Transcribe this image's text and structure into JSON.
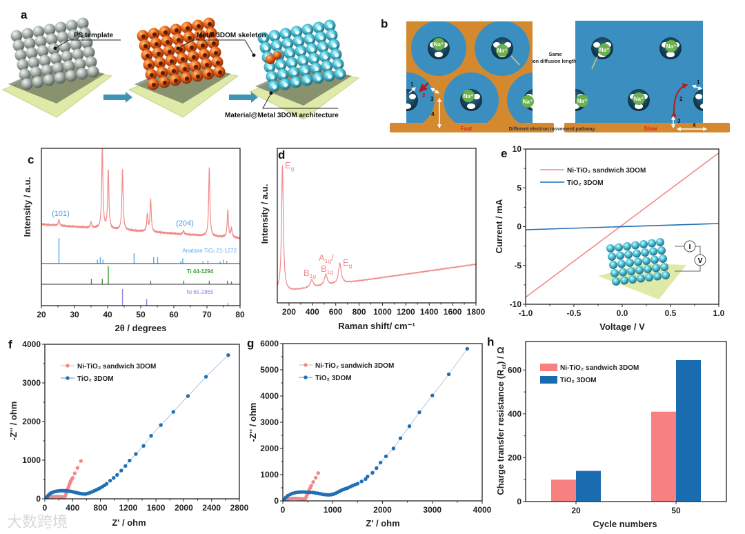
{
  "panel_labels": {
    "a": "a",
    "b": "b",
    "c": "c",
    "d": "d",
    "e": "e",
    "f": "f",
    "g": "g",
    "h": "h"
  },
  "panel_a": {
    "ps_template": "PS template",
    "metal_skeleton": "Metal 3DOM skeleton",
    "architecture": "Material@Metal 3DOM architecture"
  },
  "panel_b": {
    "ion_label": "Na⁺",
    "same_line1": "Same",
    "same_line2": "ion diffusion length",
    "pathway": "Different electron movement pathway",
    "fast": "Fast",
    "slow": "Slow",
    "steps": [
      "1",
      "2",
      "3",
      "4"
    ],
    "colors": {
      "metal": "#d4892f",
      "material": "#3b8fc0",
      "ion": "#6ab04c",
      "fast": "#d7261e"
    }
  },
  "panel_e_inset": {
    "current": "I",
    "voltage": "V"
  },
  "watermark": "大数跨境",
  "chart_data": [
    {
      "panel": "c",
      "type": "line",
      "xlabel": "2θ / degrees",
      "ylabel": "Intensity / a.u.",
      "xlim": [
        20,
        80
      ],
      "ylim": [
        0,
        100
      ],
      "xticks": [
        "20",
        "30",
        "40",
        "50",
        "60",
        "70",
        "80"
      ],
      "series": [
        {
          "name": "XRD pattern",
          "color": "#f08a8a",
          "baseline": [
            [
              20,
              34
            ],
            [
              80,
              22
            ]
          ],
          "peaks": [
            [
              25.3,
              5
            ],
            [
              35,
              5
            ],
            [
              38.4,
              72
            ],
            [
              40.2,
              51
            ],
            [
              44.5,
              52
            ],
            [
              52,
              15
            ],
            [
              53,
              28
            ],
            [
              62.9,
              3
            ],
            [
              70.7,
              59
            ],
            [
              76.3,
              24
            ],
            [
              77.4,
              8
            ]
          ]
        }
      ],
      "annotations": [
        {
          "text": "(101)",
          "x": 25.3
        },
        {
          "text": "(204)",
          "x": 62.9
        }
      ],
      "references": [
        {
          "name": "Anatase TiO₂ 21-1272",
          "color": "#5aa9e6",
          "sticks": [
            [
              25.3,
              100
            ],
            [
              36.9,
              15
            ],
            [
              37.8,
              25
            ],
            [
              38.6,
              15
            ],
            [
              48.0,
              40
            ],
            [
              53.9,
              25
            ],
            [
              55.1,
              25
            ],
            [
              62.1,
              10
            ],
            [
              62.7,
              20
            ],
            [
              68.8,
              10
            ],
            [
              70.3,
              12
            ],
            [
              74.0,
              8
            ],
            [
              75.0,
              15
            ],
            [
              76.0,
              10
            ]
          ]
        },
        {
          "name": "Ti 44-1294",
          "color": "#3a9a2e",
          "sticks": [
            [
              35.1,
              30
            ],
            [
              38.4,
              30
            ],
            [
              40.2,
              100
            ],
            [
              53.0,
              20
            ],
            [
              63.0,
              20
            ],
            [
              70.7,
              20
            ],
            [
              76.2,
              20
            ],
            [
              77.4,
              15
            ]
          ]
        },
        {
          "name": "Ni 65-2865",
          "color": "#8b84e0",
          "sticks": [
            [
              44.5,
              100
            ],
            [
              51.8,
              40
            ],
            [
              76.4,
              15
            ]
          ]
        }
      ]
    },
    {
      "panel": "d",
      "type": "line",
      "xlabel": "Raman shift/ cm⁻¹",
      "ylabel": "Intensity / a.u.",
      "xlim": [
        100,
        1800
      ],
      "ylim": [
        0,
        100
      ],
      "xticks": [
        "200",
        "400",
        "600",
        "800",
        "1000",
        "1200",
        "1400",
        "1600",
        "1800"
      ],
      "series": [
        {
          "name": "Raman spectrum",
          "color": "#f08a8a",
          "baseline": [
            [
              100,
              8
            ],
            [
              220,
              8
            ],
            [
              1800,
              25
            ]
          ],
          "peaks": [
            [
              144,
              81,
              9
            ],
            [
              395,
              5,
              15
            ],
            [
              515,
              7,
              15
            ],
            [
              635,
              13,
              14
            ]
          ]
        }
      ],
      "annotations": [
        {
          "main": "E",
          "sub": "g",
          "suffix": "",
          "x": 144
        },
        {
          "main": "B",
          "sub": "1g",
          "suffix": "",
          "x": 395
        },
        {
          "main": "A",
          "sub": "1g",
          "suffix": "/",
          "x": 515
        },
        {
          "main": "B",
          "sub": "1g",
          "suffix": "",
          "x": 515
        },
        {
          "main": "E",
          "sub": "g",
          "suffix": "",
          "x": 635
        }
      ]
    },
    {
      "panel": "e",
      "type": "line",
      "xlabel": "Voltage / V",
      "ylabel": "Current / mA",
      "xlim": [
        -1,
        1
      ],
      "ylim": [
        -10,
        10
      ],
      "xticks": [
        "-1.0",
        "-0.5",
        "0.0",
        "0.5",
        "1.0"
      ],
      "yticks": [
        "-10",
        "-5",
        "0",
        "5",
        "10"
      ],
      "legend": "top-left",
      "series": [
        {
          "name": "Ni-TiO₂ sandwich 3DOM",
          "color": "#f08a8a",
          "x": [
            -1,
            1
          ],
          "y": [
            -9.1,
            9.5
          ]
        },
        {
          "name": "TiO₂ 3DOM",
          "color": "#1f6fb4",
          "x": [
            -1,
            1
          ],
          "y": [
            -0.4,
            0.4
          ]
        }
      ]
    },
    {
      "panel": "f",
      "type": "scatter",
      "xlabel": "Z' / ohm",
      "ylabel": "-Z'' / ohm",
      "xlim": [
        0,
        2800
      ],
      "ylim": [
        0,
        4000
      ],
      "xticks": [
        "0",
        "400",
        "800",
        "1200",
        "1600",
        "2000",
        "2400",
        "2800"
      ],
      "yticks": [
        "0",
        "1000",
        "2000",
        "3000",
        "4000"
      ],
      "legend": "top-left",
      "series": [
        {
          "name": "Ni-TiO₂ sandwich 3DOM",
          "color": "#f08a8a",
          "points": [
            [
              20,
              10
            ],
            [
              40,
              30
            ],
            [
              60,
              40
            ],
            [
              80,
              48
            ],
            [
              100,
              53
            ],
            [
              125,
              57
            ],
            [
              150,
              60
            ],
            [
              175,
              60
            ],
            [
              200,
              58
            ],
            [
              225,
              55
            ],
            [
              250,
              50
            ],
            [
              275,
              48
            ],
            [
              290,
              60
            ],
            [
              300,
              100
            ],
            [
              310,
              150
            ],
            [
              320,
              200
            ],
            [
              330,
              250
            ],
            [
              340,
              300
            ],
            [
              350,
              350
            ],
            [
              360,
              400
            ],
            [
              370,
              450
            ],
            [
              385,
              500
            ],
            [
              400,
              540
            ],
            [
              430,
              660
            ],
            [
              470,
              800
            ],
            [
              520,
              980
            ]
          ]
        },
        {
          "name": "TiO₂ 3DOM",
          "color": "#1f6fb4",
          "points": [
            [
              20,
              20
            ],
            [
              40,
              70
            ],
            [
              60,
              110
            ],
            [
              80,
              140
            ],
            [
              100,
              160
            ],
            [
              125,
              178
            ],
            [
              150,
              190
            ],
            [
              175,
              198
            ],
            [
              200,
              205
            ],
            [
              230,
              209
            ],
            [
              260,
              210
            ],
            [
              290,
              208
            ],
            [
              320,
              205
            ],
            [
              350,
              198
            ],
            [
              380,
              190
            ],
            [
              410,
              178
            ],
            [
              440,
              165
            ],
            [
              470,
              152
            ],
            [
              500,
              140
            ],
            [
              530,
              130
            ],
            [
              560,
              125
            ],
            [
              590,
              126
            ],
            [
              620,
              140
            ],
            [
              650,
              160
            ],
            [
              680,
              180
            ],
            [
              710,
              205
            ],
            [
              740,
              230
            ],
            [
              770,
              255
            ],
            [
              800,
              285
            ],
            [
              830,
              315
            ],
            [
              860,
              350
            ],
            [
              890,
              390
            ],
            [
              940,
              470
            ],
            [
              990,
              540
            ],
            [
              1040,
              620
            ],
            [
              1100,
              730
            ],
            [
              1160,
              850
            ],
            [
              1220,
              990
            ],
            [
              1310,
              1160
            ],
            [
              1420,
              1370
            ],
            [
              1530,
              1630
            ],
            [
              1670,
              1910
            ],
            [
              1850,
              2250
            ],
            [
              2060,
              2660
            ],
            [
              2320,
              3160
            ],
            [
              2640,
              3720
            ]
          ]
        }
      ]
    },
    {
      "panel": "g",
      "type": "scatter",
      "xlabel": "Z' / ohm",
      "ylabel": "-Z'' / ohm",
      "xlim": [
        0,
        4000
      ],
      "ylim": [
        0,
        6000
      ],
      "xticks": [
        "0",
        "1000",
        "2000",
        "3000",
        "4000"
      ],
      "yticks": [
        "0",
        "1000",
        "2000",
        "3000",
        "4000",
        "5000",
        "6000"
      ],
      "legend": "top-left",
      "series": [
        {
          "name": "Ni-TiO₂ sandwich 3DOM",
          "color": "#f08a8a",
          "points": [
            [
              20,
              20
            ],
            [
              50,
              50
            ],
            [
              80,
              70
            ],
            [
              115,
              82
            ],
            [
              150,
              90
            ],
            [
              185,
              94
            ],
            [
              220,
              95
            ],
            [
              260,
              93
            ],
            [
              300,
              90
            ],
            [
              340,
              85
            ],
            [
              380,
              80
            ],
            [
              420,
              70
            ],
            [
              450,
              80
            ],
            [
              470,
              150
            ],
            [
              485,
              220
            ],
            [
              500,
              280
            ],
            [
              515,
              350
            ],
            [
              530,
              420
            ],
            [
              550,
              500
            ],
            [
              570,
              580
            ],
            [
              610,
              720
            ],
            [
              660,
              880
            ],
            [
              710,
              1060
            ]
          ]
        },
        {
          "name": "TiO₂ 3DOM",
          "color": "#1f6fb4",
          "points": [
            [
              20,
              50
            ],
            [
              60,
              130
            ],
            [
              100,
              200
            ],
            [
              150,
              250
            ],
            [
              200,
              290
            ],
            [
              250,
              315
            ],
            [
              300,
              330
            ],
            [
              350,
              338
            ],
            [
              400,
              340
            ],
            [
              450,
              337
            ],
            [
              500,
              330
            ],
            [
              550,
              325
            ],
            [
              600,
              320
            ],
            [
              650,
              305
            ],
            [
              700,
              290
            ],
            [
              750,
              270
            ],
            [
              800,
              250
            ],
            [
              850,
              238
            ],
            [
              900,
              230
            ],
            [
              940,
              232
            ],
            [
              980,
              240
            ],
            [
              1020,
              262
            ],
            [
              1060,
              290
            ],
            [
              1100,
              330
            ],
            [
              1140,
              370
            ],
            [
              1180,
              405
            ],
            [
              1220,
              440
            ],
            [
              1260,
              465
            ],
            [
              1300,
              490
            ],
            [
              1350,
              535
            ],
            [
              1400,
              580
            ],
            [
              1450,
              620
            ],
            [
              1500,
              660
            ],
            [
              1580,
              740
            ],
            [
              1660,
              830
            ],
            [
              1700,
              930
            ],
            [
              1800,
              1070
            ],
            [
              1880,
              1250
            ],
            [
              1960,
              1460
            ],
            [
              2070,
              1700
            ],
            [
              2220,
              2000
            ],
            [
              2360,
              2390
            ],
            [
              2540,
              2850
            ],
            [
              2740,
              3380
            ],
            [
              3000,
              4020
            ],
            [
              3330,
              4830
            ],
            [
              3700,
              5800
            ]
          ]
        }
      ]
    },
    {
      "panel": "h",
      "type": "bar",
      "xlabel": "Cycle numbers",
      "ylabel_parts": {
        "main": "Charge transfer resistance (R",
        "sub": "ct",
        "suffix": ") / Ω"
      },
      "ylim": [
        0,
        730
      ],
      "yticks": [
        "0",
        "200",
        "400",
        "600"
      ],
      "categories": [
        "20",
        "50"
      ],
      "legend": "top-left",
      "series": [
        {
          "name": "Ni-TiO₂ sandwich 3DOM",
          "color": "#f78080",
          "values": [
            100,
            410
          ]
        },
        {
          "name": "TiO₂ 3DOM",
          "color": "#1a6cb0",
          "values": [
            140,
            645
          ]
        }
      ]
    }
  ]
}
